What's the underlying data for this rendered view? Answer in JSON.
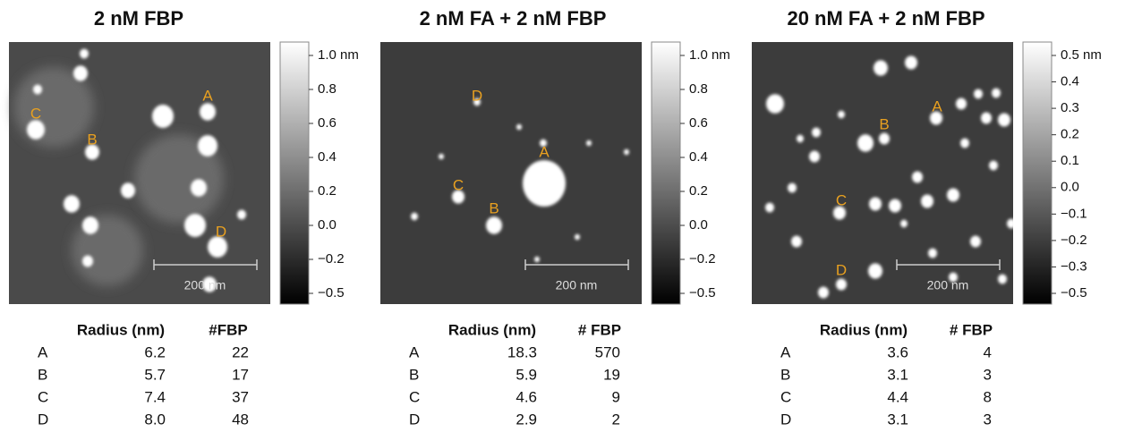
{
  "panels": [
    {
      "title": "2 nM FBP",
      "image_labels": [
        "A",
        "B",
        "C",
        "D"
      ],
      "scale_bar": "200 nm",
      "colorbar_ticks": [
        "1.0 nm",
        "0.8",
        "0.6",
        "0.4",
        "0.2",
        "0.0",
        "−0.2",
        "−0.5"
      ],
      "table": {
        "header": [
          "Radius (nm)",
          "#FBP"
        ],
        "rows": [
          [
            "A",
            "6.2",
            "22"
          ],
          [
            "B",
            "5.7",
            "17"
          ],
          [
            "C",
            "7.4",
            "37"
          ],
          [
            "D",
            "8.0",
            "48"
          ]
        ]
      }
    },
    {
      "title": "2 nM FA + 2 nM FBP",
      "image_labels": [
        "A",
        "B",
        "C",
        "D"
      ],
      "scale_bar": "200 nm",
      "colorbar_ticks": [
        "1.0 nm",
        "0.8",
        "0.6",
        "0.4",
        "0.2",
        "0.0",
        "−0.2",
        "−0.5"
      ],
      "table": {
        "header": [
          "Radius (nm)",
          "# FBP"
        ],
        "rows": [
          [
            "A",
            "18.3",
            "570"
          ],
          [
            "B",
            "5.9",
            "19"
          ],
          [
            "C",
            "4.6",
            "9"
          ],
          [
            "D",
            "2.9",
            "2"
          ]
        ]
      }
    },
    {
      "title": "20 nM FA + 2 nM FBP",
      "image_labels": [
        "A",
        "B",
        "C",
        "D"
      ],
      "scale_bar": "200 nm",
      "colorbar_ticks": [
        "0.5 nm",
        "0.4",
        "0.3",
        "0.2",
        "0.1",
        "0.0",
        "−0.1",
        "−0.2",
        "−0.3",
        "−0.5"
      ],
      "table": {
        "header": [
          "Radius (nm)",
          "# FBP"
        ],
        "rows": [
          [
            "A",
            "3.6",
            "4"
          ],
          [
            "B",
            "3.1",
            "3"
          ],
          [
            "C",
            "4.4",
            "8"
          ],
          [
            "D",
            "3.1",
            "3"
          ]
        ]
      }
    }
  ]
}
